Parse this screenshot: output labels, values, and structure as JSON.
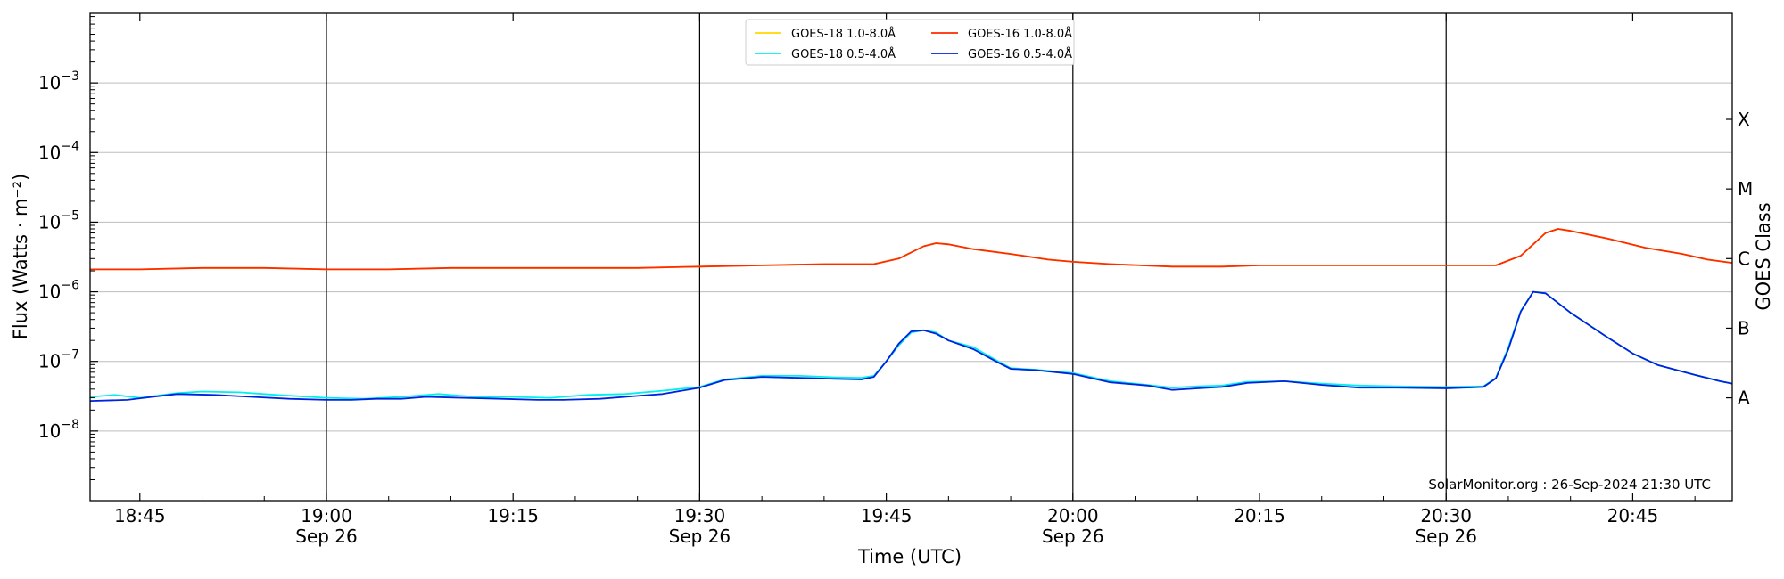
{
  "chart_data": {
    "type": "line",
    "xlabel": "Time (UTC)",
    "ylabel": "Flux (Watts · m⁻²)",
    "y2label": "GOES Class",
    "yscale": "log",
    "ylim": [
      1e-09,
      0.01
    ],
    "xlim": [
      "2024-09-26 18:41",
      "2024-09-26 20:53"
    ],
    "grid": "horizontal",
    "legend_position": "top-center",
    "credit": "SolarMonitor.org : 26-Sep-2024 21:30 UTC",
    "y_ticks": [
      {
        "value": 1e-08,
        "base": "10",
        "exp": "−8"
      },
      {
        "value": 1e-07,
        "base": "10",
        "exp": "−7"
      },
      {
        "value": 1e-06,
        "base": "10",
        "exp": "−6"
      },
      {
        "value": 1e-05,
        "base": "10",
        "exp": "−5"
      },
      {
        "value": 0.0001,
        "base": "10",
        "exp": "−4"
      },
      {
        "value": 0.001,
        "base": "10",
        "exp": "−3"
      }
    ],
    "x_ticks": [
      {
        "time": "18:45",
        "label": "18:45",
        "date": ""
      },
      {
        "time": "19:00",
        "label": "19:00",
        "date": "Sep 26"
      },
      {
        "time": "19:15",
        "label": "19:15",
        "date": ""
      },
      {
        "time": "19:30",
        "label": "19:30",
        "date": "Sep 26"
      },
      {
        "time": "19:45",
        "label": "19:45",
        "date": ""
      },
      {
        "time": "20:00",
        "label": "20:00",
        "date": "Sep 26"
      },
      {
        "time": "20:15",
        "label": "20:15",
        "date": ""
      },
      {
        "time": "20:30",
        "label": "20:30",
        "date": "Sep 26"
      },
      {
        "time": "20:45",
        "label": "20:45",
        "date": ""
      }
    ],
    "vlines": [
      "19:00",
      "19:30",
      "20:00",
      "20:30"
    ],
    "goes_classes": [
      {
        "label": "A",
        "flux": 3e-08
      },
      {
        "label": "B",
        "flux": 3e-07
      },
      {
        "label": "C",
        "flux": 3e-06
      },
      {
        "label": "M",
        "flux": 3e-05
      },
      {
        "label": "X",
        "flux": 0.0003
      }
    ],
    "series": [
      {
        "name": "GOES-18 1.0-8.0Å",
        "color": "#ffd700",
        "points": [
          [
            "18:41",
            2.1e-06
          ],
          [
            "18:45",
            2.1e-06
          ],
          [
            "18:50",
            2.2e-06
          ],
          [
            "18:55",
            2.2e-06
          ],
          [
            "19:00",
            2.1e-06
          ],
          [
            "19:05",
            2.1e-06
          ],
          [
            "19:10",
            2.2e-06
          ],
          [
            "19:15",
            2.2e-06
          ],
          [
            "19:20",
            2.2e-06
          ],
          [
            "19:25",
            2.2e-06
          ],
          [
            "19:30",
            2.3e-06
          ],
          [
            "19:35",
            2.4e-06
          ],
          [
            "19:40",
            2.5e-06
          ],
          [
            "19:44",
            2.5e-06
          ],
          [
            "19:46",
            3e-06
          ],
          [
            "19:48",
            4.5e-06
          ],
          [
            "19:49",
            5e-06
          ],
          [
            "19:50",
            4.8e-06
          ],
          [
            "19:52",
            4.1e-06
          ],
          [
            "19:55",
            3.5e-06
          ],
          [
            "19:58",
            2.9e-06
          ],
          [
            "20:00",
            2.7e-06
          ],
          [
            "20:03",
            2.5e-06
          ],
          [
            "20:08",
            2.3e-06
          ],
          [
            "20:12",
            2.3e-06
          ],
          [
            "20:15",
            2.4e-06
          ],
          [
            "20:20",
            2.4e-06
          ],
          [
            "20:25",
            2.4e-06
          ],
          [
            "20:30",
            2.4e-06
          ],
          [
            "20:34",
            2.4e-06
          ],
          [
            "20:36",
            3.3e-06
          ],
          [
            "20:37",
            4.8e-06
          ],
          [
            "20:38",
            7e-06
          ],
          [
            "20:39",
            8e-06
          ],
          [
            "20:40",
            7.5e-06
          ],
          [
            "20:43",
            5.8e-06
          ],
          [
            "20:46",
            4.3e-06
          ],
          [
            "20:49",
            3.5e-06
          ],
          [
            "20:51",
            2.9e-06
          ],
          [
            "20:53",
            2.6e-06
          ]
        ]
      },
      {
        "name": "GOES-16 1.0-8.0Å",
        "color": "#ff2a00",
        "points": [
          [
            "18:41",
            2.1e-06
          ],
          [
            "18:45",
            2.1e-06
          ],
          [
            "18:50",
            2.2e-06
          ],
          [
            "18:55",
            2.2e-06
          ],
          [
            "19:00",
            2.1e-06
          ],
          [
            "19:05",
            2.1e-06
          ],
          [
            "19:10",
            2.2e-06
          ],
          [
            "19:15",
            2.2e-06
          ],
          [
            "19:20",
            2.2e-06
          ],
          [
            "19:25",
            2.2e-06
          ],
          [
            "19:30",
            2.3e-06
          ],
          [
            "19:35",
            2.4e-06
          ],
          [
            "19:40",
            2.5e-06
          ],
          [
            "19:44",
            2.5e-06
          ],
          [
            "19:46",
            3e-06
          ],
          [
            "19:48",
            4.5e-06
          ],
          [
            "19:49",
            5e-06
          ],
          [
            "19:50",
            4.8e-06
          ],
          [
            "19:52",
            4.1e-06
          ],
          [
            "19:55",
            3.5e-06
          ],
          [
            "19:58",
            2.9e-06
          ],
          [
            "20:00",
            2.7e-06
          ],
          [
            "20:03",
            2.5e-06
          ],
          [
            "20:08",
            2.3e-06
          ],
          [
            "20:12",
            2.3e-06
          ],
          [
            "20:15",
            2.4e-06
          ],
          [
            "20:20",
            2.4e-06
          ],
          [
            "20:25",
            2.4e-06
          ],
          [
            "20:30",
            2.4e-06
          ],
          [
            "20:34",
            2.4e-06
          ],
          [
            "20:36",
            3.3e-06
          ],
          [
            "20:37",
            4.8e-06
          ],
          [
            "20:38",
            7e-06
          ],
          [
            "20:39",
            8e-06
          ],
          [
            "20:40",
            7.5e-06
          ],
          [
            "20:43",
            5.8e-06
          ],
          [
            "20:46",
            4.3e-06
          ],
          [
            "20:49",
            3.5e-06
          ],
          [
            "20:51",
            2.9e-06
          ],
          [
            "20:53",
            2.6e-06
          ]
        ]
      },
      {
        "name": "GOES-18 0.5-4.0Å",
        "color": "#00f0f0",
        "points": [
          [
            "18:41",
            3.1e-08
          ],
          [
            "18:43",
            3.3e-08
          ],
          [
            "18:45",
            3e-08
          ],
          [
            "18:48",
            3.5e-08
          ],
          [
            "18:50",
            3.7e-08
          ],
          [
            "18:53",
            3.6e-08
          ],
          [
            "18:56",
            3.3e-08
          ],
          [
            "19:00",
            3e-08
          ],
          [
            "19:03",
            2.9e-08
          ],
          [
            "19:06",
            3.1e-08
          ],
          [
            "19:09",
            3.4e-08
          ],
          [
            "19:12",
            3.1e-08
          ],
          [
            "19:15",
            3.1e-08
          ],
          [
            "19:18",
            3e-08
          ],
          [
            "19:21",
            3.3e-08
          ],
          [
            "19:24",
            3.4e-08
          ],
          [
            "19:27",
            3.8e-08
          ],
          [
            "19:30",
            4.3e-08
          ],
          [
            "19:32",
            5.5e-08
          ],
          [
            "19:35",
            6.2e-08
          ],
          [
            "19:38",
            6.2e-08
          ],
          [
            "19:41",
            5.9e-08
          ],
          [
            "19:43",
            5.8e-08
          ],
          [
            "19:44",
            6.2e-08
          ],
          [
            "19:45",
            1e-07
          ],
          [
            "19:46",
            1.7e-07
          ],
          [
            "19:47",
            2.6e-07
          ],
          [
            "19:48",
            2.8e-07
          ],
          [
            "19:49",
            2.6e-07
          ],
          [
            "19:50",
            2e-07
          ],
          [
            "19:52",
            1.6e-07
          ],
          [
            "19:54",
            1e-07
          ],
          [
            "19:55",
            8e-08
          ],
          [
            "19:57",
            7.6e-08
          ],
          [
            "20:00",
            6.8e-08
          ],
          [
            "20:03",
            5.2e-08
          ],
          [
            "20:06",
            4.6e-08
          ],
          [
            "20:08",
            4.2e-08
          ],
          [
            "20:10",
            4.4e-08
          ],
          [
            "20:12",
            4.5e-08
          ],
          [
            "20:14",
            5.1e-08
          ],
          [
            "20:17",
            5.2e-08
          ],
          [
            "20:20",
            4.8e-08
          ],
          [
            "20:23",
            4.5e-08
          ],
          [
            "20:26",
            4.4e-08
          ],
          [
            "20:30",
            4.3e-08
          ],
          [
            "20:33",
            4.4e-08
          ],
          [
            "20:34",
            5.8e-08
          ],
          [
            "20:35",
            1.6e-07
          ],
          [
            "20:36",
            5.3e-07
          ],
          [
            "20:37",
            1e-06
          ],
          [
            "20:38",
            9.5e-07
          ],
          [
            "20:40",
            5e-07
          ],
          [
            "20:43",
            2.2e-07
          ],
          [
            "20:45",
            1.3e-07
          ],
          [
            "20:47",
            8.9e-08
          ],
          [
            "20:50",
            6.4e-08
          ],
          [
            "20:52",
            5.2e-08
          ],
          [
            "20:53",
            4.8e-08
          ]
        ]
      },
      {
        "name": "GOES-16 0.5-4.0Å",
        "color": "#0022dd",
        "points": [
          [
            "18:41",
            2.7e-08
          ],
          [
            "18:44",
            2.8e-08
          ],
          [
            "18:46",
            3.1e-08
          ],
          [
            "18:48",
            3.4e-08
          ],
          [
            "18:51",
            3.3e-08
          ],
          [
            "18:54",
            3.1e-08
          ],
          [
            "18:57",
            2.9e-08
          ],
          [
            "19:00",
            2.8e-08
          ],
          [
            "19:02",
            2.8e-08
          ],
          [
            "19:04",
            2.9e-08
          ],
          [
            "19:06",
            2.9e-08
          ],
          [
            "19:08",
            3.1e-08
          ],
          [
            "19:11",
            3e-08
          ],
          [
            "19:14",
            2.9e-08
          ],
          [
            "19:17",
            2.8e-08
          ],
          [
            "19:19",
            2.8e-08
          ],
          [
            "19:22",
            2.9e-08
          ],
          [
            "19:25",
            3.2e-08
          ],
          [
            "19:27",
            3.4e-08
          ],
          [
            "19:30",
            4.2e-08
          ],
          [
            "19:32",
            5.4e-08
          ],
          [
            "19:35",
            6e-08
          ],
          [
            "19:38",
            5.8e-08
          ],
          [
            "19:41",
            5.6e-08
          ],
          [
            "19:43",
            5.5e-08
          ],
          [
            "19:44",
            6e-08
          ],
          [
            "19:45",
            1e-07
          ],
          [
            "19:46",
            1.8e-07
          ],
          [
            "19:47",
            2.7e-07
          ],
          [
            "19:48",
            2.8e-07
          ],
          [
            "19:49",
            2.5e-07
          ],
          [
            "19:50",
            2e-07
          ],
          [
            "19:52",
            1.5e-07
          ],
          [
            "19:54",
            9.6e-08
          ],
          [
            "19:55",
            7.8e-08
          ],
          [
            "19:57",
            7.5e-08
          ],
          [
            "20:00",
            6.6e-08
          ],
          [
            "20:03",
            5e-08
          ],
          [
            "20:06",
            4.5e-08
          ],
          [
            "20:08",
            3.9e-08
          ],
          [
            "20:10",
            4.1e-08
          ],
          [
            "20:12",
            4.3e-08
          ],
          [
            "20:14",
            4.9e-08
          ],
          [
            "20:17",
            5.2e-08
          ],
          [
            "20:20",
            4.6e-08
          ],
          [
            "20:23",
            4.2e-08
          ],
          [
            "20:26",
            4.2e-08
          ],
          [
            "20:30",
            4.1e-08
          ],
          [
            "20:33",
            4.3e-08
          ],
          [
            "20:34",
            5.7e-08
          ],
          [
            "20:35",
            1.5e-07
          ],
          [
            "20:36",
            5.2e-07
          ],
          [
            "20:37",
            1e-06
          ],
          [
            "20:38",
            9.5e-07
          ],
          [
            "20:40",
            5e-07
          ],
          [
            "20:43",
            2.2e-07
          ],
          [
            "20:45",
            1.3e-07
          ],
          [
            "20:47",
            8.9e-08
          ],
          [
            "20:50",
            6.4e-08
          ],
          [
            "20:52",
            5.2e-08
          ],
          [
            "20:53",
            4.8e-08
          ]
        ]
      }
    ],
    "legend": [
      {
        "name": "GOES-18 1.0-8.0Å",
        "color": "#ffd700"
      },
      {
        "name": "GOES-18 0.5-4.0Å",
        "color": "#00f0f0"
      },
      {
        "name": "GOES-16 1.0-8.0Å",
        "color": "#ff2a00"
      },
      {
        "name": "GOES-16 0.5-4.0Å",
        "color": "#0022dd"
      }
    ]
  }
}
